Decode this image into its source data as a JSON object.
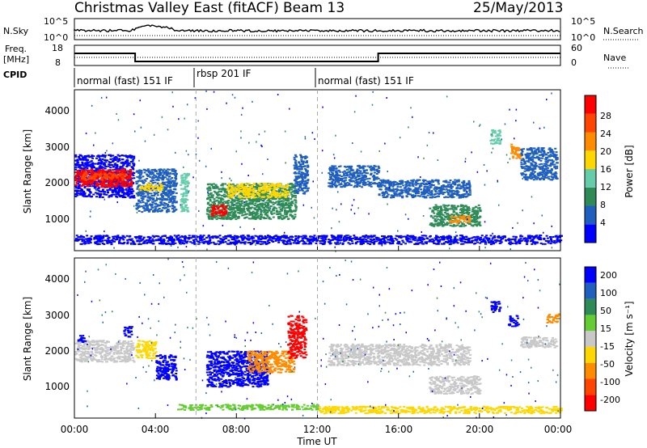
{
  "header": {
    "station": "Christmas Valley East (fitACF)",
    "beam": "Beam 13",
    "date": "25/May/2013"
  },
  "noise_panel": {
    "left_label": "N.Sky",
    "left_ticks": [
      "10^5",
      "10^0"
    ],
    "right_ticks": [
      "10^5",
      "10^0"
    ],
    "right_label": "N.Search"
  },
  "freq_panel": {
    "left_label_1": "Freq.",
    "left_label_2": "[MHz]",
    "left_ticks": [
      "18",
      "8"
    ],
    "right_ticks": [
      "60",
      "0"
    ],
    "right_label": "Nave"
  },
  "cpid_panel": {
    "label": "CPID",
    "segments": [
      {
        "label": "normal (fast) 151 IF",
        "start_hour": 0,
        "end_hour": 6
      },
      {
        "label": "rbsp 201 IF",
        "start_hour": 6,
        "end_hour": 12
      },
      {
        "label": "normal (fast) 151 IF",
        "start_hour": 12,
        "end_hour": 24
      }
    ]
  },
  "x_axis": {
    "title": "Time UT",
    "ticks": [
      "00:00",
      "04:00",
      "08:00",
      "12:00",
      "16:00",
      "20:00",
      "00:00"
    ]
  },
  "power_panel": {
    "ylabel": "Slant Range [km]",
    "yticks": [
      "1000",
      "2000",
      "3000",
      "4000"
    ],
    "colorbar_title": "Power [dB]",
    "colorbar_ticks": [
      "4",
      "8",
      "12",
      "16",
      "20",
      "24",
      "28"
    ],
    "colors": [
      "#0000ff",
      "#1f5fbf",
      "#2e8b57",
      "#66cdaa",
      "#ffd700",
      "#ff8c00",
      "#ff4500",
      "#ff0000"
    ]
  },
  "velocity_panel": {
    "ylabel": "Slant Range [km]",
    "yticks": [
      "1000",
      "2000",
      "3000",
      "4000"
    ],
    "colorbar_title": "Velocity [m s⁻¹]",
    "colorbar_ticks": [
      "200",
      "100",
      "50",
      "15",
      "-15",
      "-50",
      "-100",
      "-200"
    ],
    "colors": [
      "#0000ff",
      "#1f5fbf",
      "#2e8b57",
      "#66cc33",
      "#c8c8c8",
      "#ffd700",
      "#ff8c00",
      "#ff4500",
      "#ff0000"
    ]
  },
  "chart_data": {
    "type": "heatmap",
    "x_unit": "hours UT",
    "xlim": [
      0,
      24
    ],
    "ylim": [
      0,
      4500
    ],
    "frequency_mhz": [
      {
        "start": 0,
        "end": 3,
        "value": 14
      },
      {
        "start": 3,
        "end": 15,
        "value": 10
      },
      {
        "start": 15,
        "end": 24,
        "value": 14
      }
    ],
    "power_regions": [
      {
        "t0": 0.0,
        "t1": 2.9,
        "r0": 1500,
        "r1": 2700,
        "level": 0
      },
      {
        "t0": 0.0,
        "t1": 2.8,
        "r0": 1800,
        "r1": 2300,
        "level": 7
      },
      {
        "t0": 0.3,
        "t1": 2.5,
        "r0": 2000,
        "r1": 2200,
        "level": 6
      },
      {
        "t0": 3.0,
        "t1": 5.0,
        "r0": 1100,
        "r1": 2300,
        "level": 1
      },
      {
        "t0": 3.2,
        "t1": 4.3,
        "r0": 1700,
        "r1": 1900,
        "level": 4
      },
      {
        "t0": 5.2,
        "t1": 5.6,
        "r0": 1100,
        "r1": 2200,
        "level": 3
      },
      {
        "t0": 6.5,
        "t1": 10.9,
        "r0": 900,
        "r1": 1900,
        "level": 2
      },
      {
        "t0": 6.7,
        "t1": 7.5,
        "r0": 1000,
        "r1": 1300,
        "level": 7
      },
      {
        "t0": 7.5,
        "t1": 10.5,
        "r0": 1500,
        "r1": 1900,
        "level": 4
      },
      {
        "t0": 10.8,
        "t1": 11.5,
        "r0": 1600,
        "r1": 2700,
        "level": 1
      },
      {
        "t0": 12.5,
        "t1": 15.0,
        "r0": 1800,
        "r1": 2400,
        "level": 1
      },
      {
        "t0": 15.0,
        "t1": 19.5,
        "r0": 1500,
        "r1": 2000,
        "level": 1
      },
      {
        "t0": 17.5,
        "t1": 20.0,
        "r0": 700,
        "r1": 1300,
        "level": 2
      },
      {
        "t0": 18.5,
        "t1": 19.5,
        "r0": 800,
        "r1": 1000,
        "level": 5
      },
      {
        "t0": 20.5,
        "t1": 21.0,
        "r0": 3000,
        "r1": 3400,
        "level": 3
      },
      {
        "t0": 21.5,
        "t1": 22.0,
        "r0": 2600,
        "r1": 3000,
        "level": 5
      },
      {
        "t0": 22.0,
        "t1": 23.8,
        "r0": 2000,
        "r1": 2900,
        "level": 1
      },
      {
        "t0": 0.0,
        "t1": 24.0,
        "r0": 200,
        "r1": 450,
        "level": 0
      }
    ],
    "velocity_regions": [
      {
        "t0": 0.0,
        "t1": 2.9,
        "r0": 1600,
        "r1": 2200,
        "level": 4
      },
      {
        "t0": 0.1,
        "t1": 0.5,
        "r0": 2150,
        "r1": 2350,
        "level": 0
      },
      {
        "t0": 2.4,
        "t1": 2.8,
        "r0": 2300,
        "r1": 2600,
        "level": 0
      },
      {
        "t0": 3.0,
        "t1": 4.0,
        "r0": 1700,
        "r1": 2200,
        "level": 5
      },
      {
        "t0": 4.0,
        "t1": 5.0,
        "r0": 1100,
        "r1": 1800,
        "level": 0
      },
      {
        "t0": 6.5,
        "t1": 9.5,
        "r0": 900,
        "r1": 1900,
        "level": 0
      },
      {
        "t0": 8.5,
        "t1": 10.8,
        "r0": 1300,
        "r1": 1900,
        "level": 6
      },
      {
        "t0": 10.5,
        "t1": 11.4,
        "r0": 1700,
        "r1": 2900,
        "level": 8
      },
      {
        "t0": 12.5,
        "t1": 19.5,
        "r0": 1500,
        "r1": 2100,
        "level": 4
      },
      {
        "t0": 17.5,
        "t1": 20.0,
        "r0": 700,
        "r1": 1200,
        "level": 4
      },
      {
        "t0": 20.5,
        "t1": 21.0,
        "r0": 3000,
        "r1": 3300,
        "level": 0
      },
      {
        "t0": 21.4,
        "t1": 21.9,
        "r0": 2600,
        "r1": 2900,
        "level": 0
      },
      {
        "t0": 22.0,
        "t1": 23.8,
        "r0": 2000,
        "r1": 2300,
        "level": 4
      },
      {
        "t0": 23.3,
        "t1": 23.9,
        "r0": 2700,
        "r1": 2950,
        "level": 6
      },
      {
        "t0": 12.0,
        "t1": 24.0,
        "r0": 150,
        "r1": 350,
        "level": 5
      },
      {
        "t0": 5.0,
        "t1": 12.0,
        "r0": 250,
        "r1": 400,
        "level": 3
      }
    ]
  }
}
